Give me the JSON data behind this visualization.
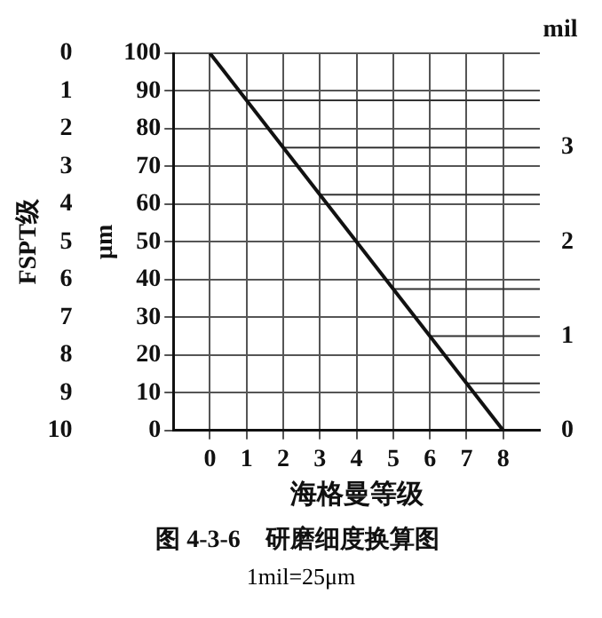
{
  "chart_data": {
    "type": "line",
    "title": "图 4-3-6　研磨细度换算图",
    "xlabel": "海格曼等级",
    "ylabel": "μm",
    "y2label": "mil",
    "y3label": "FSPT级",
    "x": [
      0,
      8
    ],
    "series": [
      {
        "color": "#111111",
        "values": [
          100,
          0
        ]
      }
    ],
    "xlim": [
      -1,
      9
    ],
    "xticks": [
      0,
      1,
      2,
      3,
      4,
      5,
      6,
      7,
      8
    ],
    "ylim": [
      0,
      100
    ],
    "yticks": [
      0,
      10,
      20,
      30,
      40,
      50,
      60,
      70,
      80,
      90,
      100
    ],
    "y2lim": [
      0,
      4
    ],
    "y2ticks": [
      0,
      1,
      2,
      3
    ],
    "y3lim": [
      10,
      0
    ],
    "y3ticks": [
      0,
      1,
      2,
      3,
      4,
      5,
      6,
      7,
      8,
      9,
      10
    ],
    "grid": true,
    "ref_lines": [
      {
        "axis": "y",
        "value": 87.5
      },
      {
        "axis": "y",
        "value": 75
      },
      {
        "axis": "y",
        "value": 62.5
      },
      {
        "axis": "y",
        "value": 37.5
      },
      {
        "axis": "y",
        "value": 25
      },
      {
        "axis": "y",
        "value": 12.5
      }
    ],
    "marker": "none",
    "legend": false,
    "annotations": [
      "1mil=25μm"
    ]
  }
}
